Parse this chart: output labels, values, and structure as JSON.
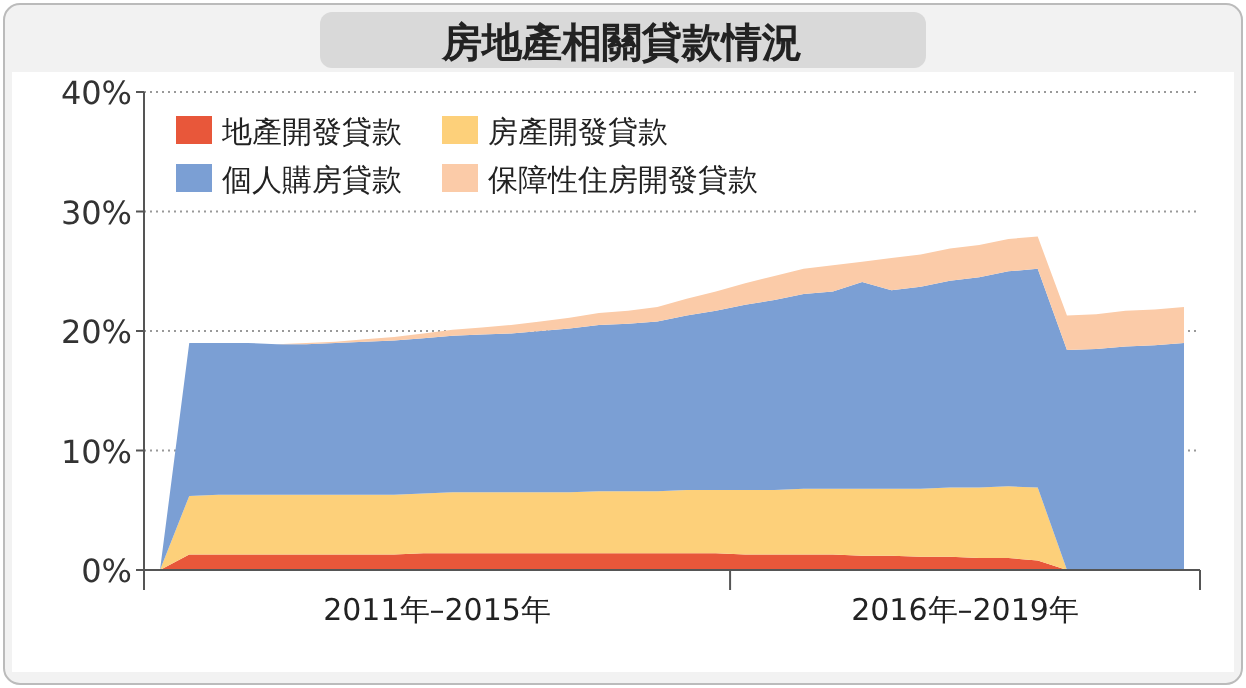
{
  "chart_data": {
    "type": "area",
    "title": "房地產相關貸款情況",
    "stacked": true,
    "legend": "top left",
    "grid": "y",
    "categories": [
      null,
      null,
      null,
      null,
      null,
      null,
      null,
      null,
      null,
      null,
      null,
      null,
      null,
      null,
      null,
      null,
      null,
      null,
      null,
      null,
      null,
      null,
      null,
      null,
      null,
      null,
      null,
      null,
      null,
      null,
      null,
      null,
      null,
      null,
      null,
      null
    ],
    "series": [
      {
        "name": "地產開發貸款",
        "color": "#e8573a",
        "values": [
          0,
          1.3,
          1.3,
          1.3,
          1.3,
          1.3,
          1.3,
          1.3,
          1.3,
          1.4,
          1.4,
          1.4,
          1.4,
          1.4,
          1.4,
          1.4,
          1.4,
          1.4,
          1.4,
          1.4,
          1.3,
          1.3,
          1.3,
          1.3,
          1.2,
          1.2,
          1.1,
          1.1,
          1.0,
          1.0,
          0.8,
          0,
          0,
          0,
          0,
          0
        ]
      },
      {
        "name": "房產開發貸款",
        "color": "#fdd07a",
        "values": [
          0,
          4.9,
          5.0,
          5.0,
          5.0,
          5.0,
          5.0,
          5.0,
          5.0,
          5.0,
          5.1,
          5.1,
          5.1,
          5.1,
          5.1,
          5.2,
          5.2,
          5.2,
          5.3,
          5.3,
          5.4,
          5.4,
          5.5,
          5.5,
          5.6,
          5.6,
          5.7,
          5.8,
          5.9,
          6.0,
          6.1,
          0,
          0,
          0,
          0,
          0
        ]
      },
      {
        "name": "個人購房貸款",
        "color": "#7b9fd4",
        "values": [
          0,
          12.8,
          12.7,
          12.7,
          12.6,
          12.6,
          12.7,
          12.8,
          12.9,
          13.0,
          13.1,
          13.2,
          13.3,
          13.5,
          13.7,
          13.9,
          14.0,
          14.2,
          14.6,
          15.0,
          15.5,
          15.9,
          16.3,
          16.5,
          17.3,
          16.6,
          16.9,
          17.3,
          17.6,
          18.0,
          18.3,
          18.4,
          18.5,
          18.7,
          18.8,
          19.0
        ]
      },
      {
        "name": "保障性住房開發貸款",
        "color": "#fbcba8",
        "values": [
          0,
          0,
          0,
          0,
          0,
          0.1,
          0.1,
          0.2,
          0.3,
          0.4,
          0.5,
          0.6,
          0.7,
          0.8,
          0.9,
          1.0,
          1.1,
          1.2,
          1.4,
          1.6,
          1.8,
          2.0,
          2.1,
          2.2,
          1.7,
          2.7,
          2.7,
          2.7,
          2.7,
          2.7,
          2.7,
          2.9,
          2.9,
          3.0,
          3.0,
          3.0
        ]
      }
    ],
    "annotations": [
      "2011年–2015年",
      "2016年–2019年"
    ],
    "ylim": [
      0,
      40
    ],
    "yticks": [
      {
        "value": 0,
        "label": "0%"
      },
      {
        "value": 10,
        "label": "10%"
      },
      {
        "value": 20,
        "label": "20%"
      },
      {
        "value": 30,
        "label": "30%"
      },
      {
        "value": 40,
        "label": "40%"
      }
    ]
  }
}
